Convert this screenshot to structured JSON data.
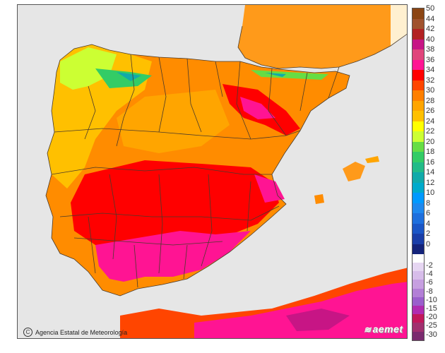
{
  "credit": {
    "icon": "copyright-icon",
    "text": "Agencia Estatal de Meteorología"
  },
  "logo": {
    "icon": "aemet-logo-icon",
    "text": "aemet"
  },
  "legend": {
    "positive": [
      {
        "label": "50",
        "color": "#8b4513"
      },
      {
        "label": "44",
        "color": "#a0522d"
      },
      {
        "label": "42",
        "color": "#b22222"
      },
      {
        "label": "40",
        "color": "#c71585"
      },
      {
        "label": "38",
        "color": "#e0457b"
      },
      {
        "label": "36",
        "color": "#ff1493"
      },
      {
        "label": "34",
        "color": "#ff0000"
      },
      {
        "label": "32",
        "color": "#ff4500"
      },
      {
        "label": "30",
        "color": "#ff7f00"
      },
      {
        "label": "28",
        "color": "#ffa500"
      },
      {
        "label": "26",
        "color": "#ffc000"
      },
      {
        "label": "24",
        "color": "#ffff00"
      },
      {
        "label": "22",
        "color": "#ccff33"
      },
      {
        "label": "20",
        "color": "#66dd44"
      },
      {
        "label": "18",
        "color": "#33cc66"
      },
      {
        "label": "16",
        "color": "#22bb88"
      },
      {
        "label": "14",
        "color": "#11aaaa"
      },
      {
        "label": "12",
        "color": "#00aacc"
      },
      {
        "label": "10",
        "color": "#0099ff"
      },
      {
        "label": "8",
        "color": "#1e88ee"
      },
      {
        "label": "6",
        "color": "#1e6fdd"
      },
      {
        "label": "4",
        "color": "#1b56c6"
      },
      {
        "label": "2",
        "color": "#1a3ea8"
      },
      {
        "label": "0",
        "color": "#14237a"
      }
    ],
    "negative": [
      {
        "label": "-2",
        "color": "#e6d6f2"
      },
      {
        "label": "-4",
        "color": "#d7bdea"
      },
      {
        "label": "-6",
        "color": "#c69fe0"
      },
      {
        "label": "-8",
        "color": "#b27fd6"
      },
      {
        "label": "-10",
        "color": "#9a5fcc"
      },
      {
        "label": "-15",
        "color": "#b02cb0"
      },
      {
        "label": "-20",
        "color": "#c2185b"
      },
      {
        "label": "-25",
        "color": "#a0306e"
      },
      {
        "label": "-30",
        "color": "#7a2b6e"
      }
    ]
  }
}
